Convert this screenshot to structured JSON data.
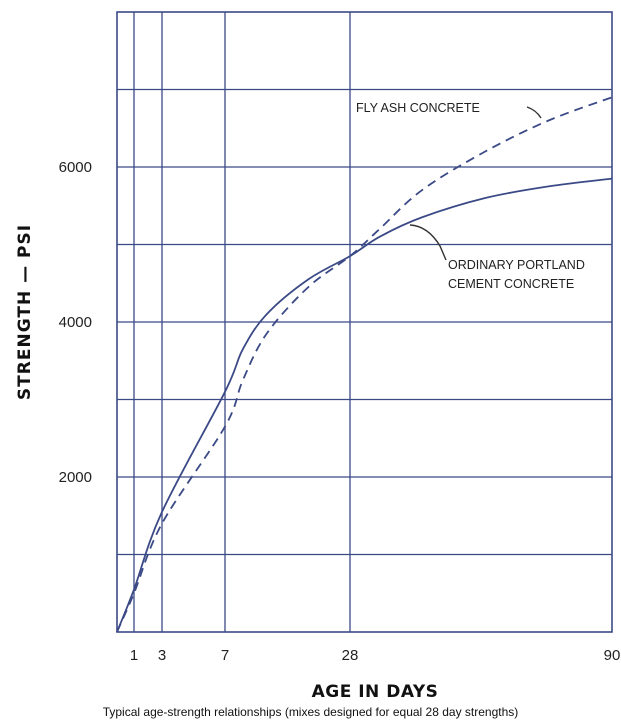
{
  "chart_data": {
    "type": "line",
    "x_axis": {
      "label": "AGE IN DAYS",
      "tick_values": [
        1,
        3,
        7,
        28,
        90
      ],
      "tick_labels": [
        "1",
        "3",
        "7",
        "28",
        "90"
      ]
    },
    "y_axis": {
      "label": "STRENGTH — PSI",
      "range": [
        0,
        8000
      ],
      "tick_values": [
        2000,
        4000,
        6000
      ],
      "tick_labels": [
        "2000",
        "4000",
        "6000"
      ]
    },
    "grid": true,
    "series": [
      {
        "name": "FLY ASH CONCRETE",
        "style": "dashed",
        "color": "#3b4a86",
        "x": [
          0,
          1,
          3,
          7,
          10,
          14,
          21,
          28,
          35,
          45,
          60,
          75,
          90
        ],
        "y": [
          0,
          500,
          1400,
          2650,
          3250,
          3850,
          4450,
          4850,
          5200,
          5700,
          6200,
          6600,
          6900
        ]
      },
      {
        "name": "ORDINARY PORTLAND CEMENT CONCRETE",
        "style": "solid",
        "color": "#3b4a86",
        "x": [
          0,
          1,
          3,
          7,
          10,
          14,
          21,
          28,
          35,
          45,
          60,
          75,
          90
        ],
        "y": [
          0,
          550,
          1550,
          3100,
          3650,
          4100,
          4550,
          4850,
          5100,
          5350,
          5600,
          5750,
          5850
        ]
      }
    ],
    "annotations": {
      "fly_ash": "FLY ASH CONCRETE",
      "opc_line1": "ORDINARY PORTLAND",
      "opc_line2": "CEMENT CONCRETE"
    },
    "caption": "Typical age-strength relationships (mixes designed for equal 28 day strengths)"
  }
}
